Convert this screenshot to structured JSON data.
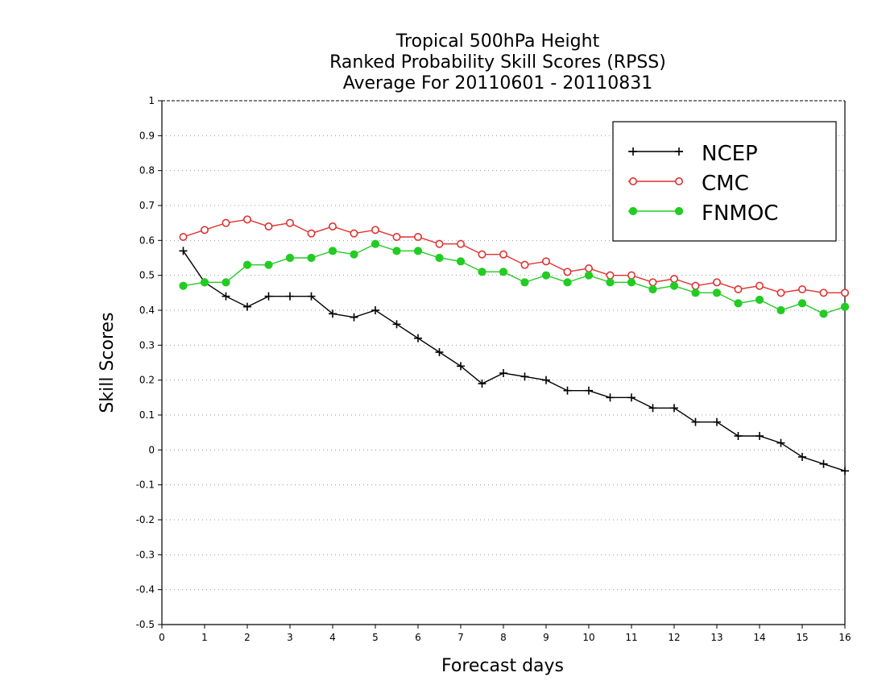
{
  "chart_data": {
    "type": "line",
    "title": [
      "Tropical 500hPa Height",
      "Ranked Probability Skill Scores (RPSS)",
      "Average For 20110601 - 20110831"
    ],
    "xlabel": "Forecast days",
    "ylabel": "Skill Scores",
    "xlim": [
      0,
      16
    ],
    "ylim": [
      -0.5,
      1
    ],
    "x_ticks": [
      0,
      1,
      2,
      3,
      4,
      5,
      6,
      7,
      8,
      9,
      10,
      11,
      12,
      13,
      14,
      15,
      16
    ],
    "x_tick_labels": [
      "0",
      "1",
      "2",
      "3",
      "4",
      "5",
      "6",
      "7",
      "8",
      "9",
      "10",
      "11",
      "12",
      "13",
      "14",
      "15",
      "16"
    ],
    "y_ticks": [
      -0.5,
      -0.4,
      -0.3,
      -0.2,
      -0.1,
      0,
      0.1,
      0.2,
      0.3,
      0.4,
      0.5,
      0.6,
      0.7,
      0.8,
      0.9,
      1
    ],
    "y_tick_labels": [
      "-0.5",
      "-0.4",
      "-0.3",
      "-0.2",
      "-0.1",
      "0",
      "0.1",
      "0.2",
      "0.3",
      "0.4",
      "0.5",
      "0.6",
      "0.7",
      "0.8",
      "0.9",
      "1"
    ],
    "grid": "horizontal dotted",
    "legend_position": "top-right",
    "x": [
      0.5,
      1,
      1.5,
      2,
      2.5,
      3,
      3.5,
      4,
      4.5,
      5,
      5.5,
      6,
      6.5,
      7,
      7.5,
      8,
      8.5,
      9,
      9.5,
      10,
      10.5,
      11,
      11.5,
      12,
      12.5,
      13,
      13.5,
      14,
      14.5,
      15,
      15.5,
      16
    ],
    "series": [
      {
        "name": "NCEP",
        "color": "#000000",
        "marker": "plus",
        "values": [
          0.57,
          0.48,
          0.44,
          0.41,
          0.44,
          0.44,
          0.44,
          0.39,
          0.38,
          0.4,
          0.36,
          0.32,
          0.28,
          0.24,
          0.19,
          0.22,
          0.21,
          0.2,
          0.17,
          0.17,
          0.15,
          0.15,
          0.12,
          0.12,
          0.08,
          0.08,
          0.04,
          0.04,
          0.02,
          -0.02,
          -0.04,
          -0.06
        ]
      },
      {
        "name": "CMC",
        "color": "#e03030",
        "marker": "open-circle",
        "values": [
          0.61,
          0.63,
          0.65,
          0.66,
          0.64,
          0.65,
          0.62,
          0.64,
          0.62,
          0.63,
          0.61,
          0.61,
          0.59,
          0.59,
          0.56,
          0.56,
          0.53,
          0.54,
          0.51,
          0.52,
          0.5,
          0.5,
          0.48,
          0.49,
          0.47,
          0.48,
          0.46,
          0.47,
          0.45,
          0.46,
          0.45,
          0.45
        ]
      },
      {
        "name": "FNMOC",
        "color": "#22cc22",
        "marker": "filled-circle",
        "values": [
          0.47,
          0.48,
          0.48,
          0.53,
          0.53,
          0.55,
          0.55,
          0.57,
          0.56,
          0.59,
          0.57,
          0.57,
          0.55,
          0.54,
          0.51,
          0.51,
          0.48,
          0.5,
          0.48,
          0.5,
          0.48,
          0.48,
          0.46,
          0.47,
          0.45,
          0.45,
          0.42,
          0.43,
          0.4,
          0.42,
          0.39,
          0.41
        ]
      }
    ]
  }
}
